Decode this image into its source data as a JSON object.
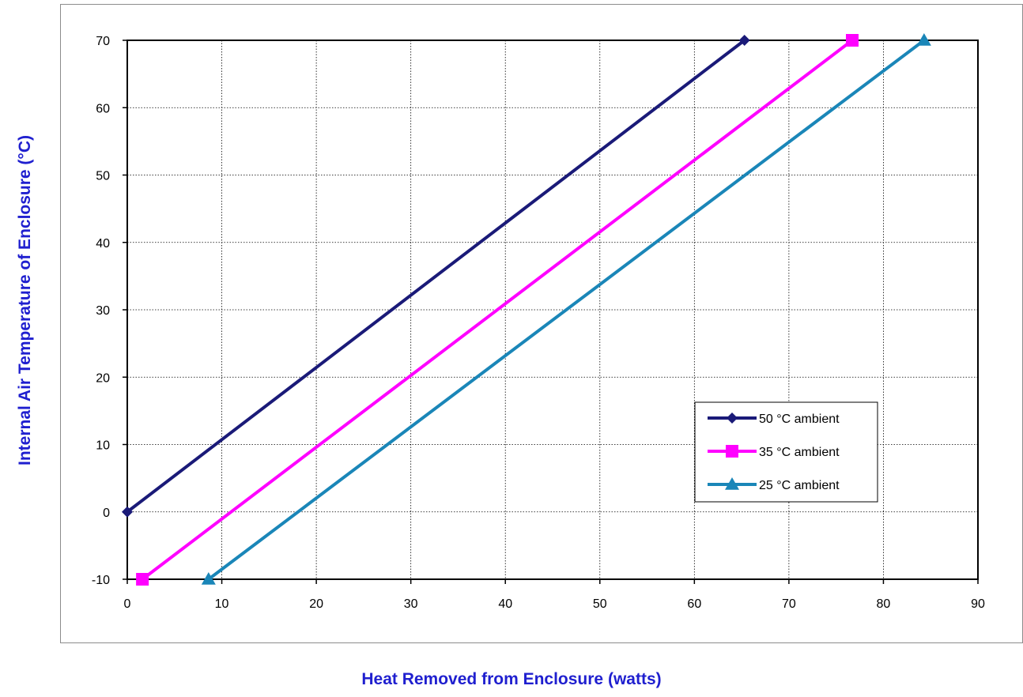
{
  "chart_data": {
    "type": "line",
    "title": "",
    "xlabel": "Heat Removed from Enclosure (watts)",
    "ylabel": "Internal Air Temperature of Enclosure (°C)",
    "xlim": [
      0,
      90
    ],
    "ylim": [
      -10,
      70
    ],
    "xticks": [
      0,
      10,
      20,
      30,
      40,
      50,
      60,
      70,
      80,
      90
    ],
    "yticks": [
      -10,
      0,
      10,
      20,
      30,
      40,
      50,
      60,
      70
    ],
    "grid": true,
    "legend_position": "lower-right",
    "series": [
      {
        "name": "50 °C ambient",
        "color": "#1a1a78",
        "marker": "diamond",
        "points": [
          [
            0,
            0
          ],
          [
            65.3,
            70
          ]
        ]
      },
      {
        "name": "35 °C ambient",
        "color": "#ff00ff",
        "marker": "square",
        "points": [
          [
            1.6,
            -10
          ],
          [
            76.7,
            70
          ]
        ]
      },
      {
        "name": "25 °C ambient",
        "color": "#1a86b8",
        "marker": "triangle",
        "points": [
          [
            8.6,
            -10
          ],
          [
            84.3,
            70
          ]
        ]
      }
    ]
  }
}
